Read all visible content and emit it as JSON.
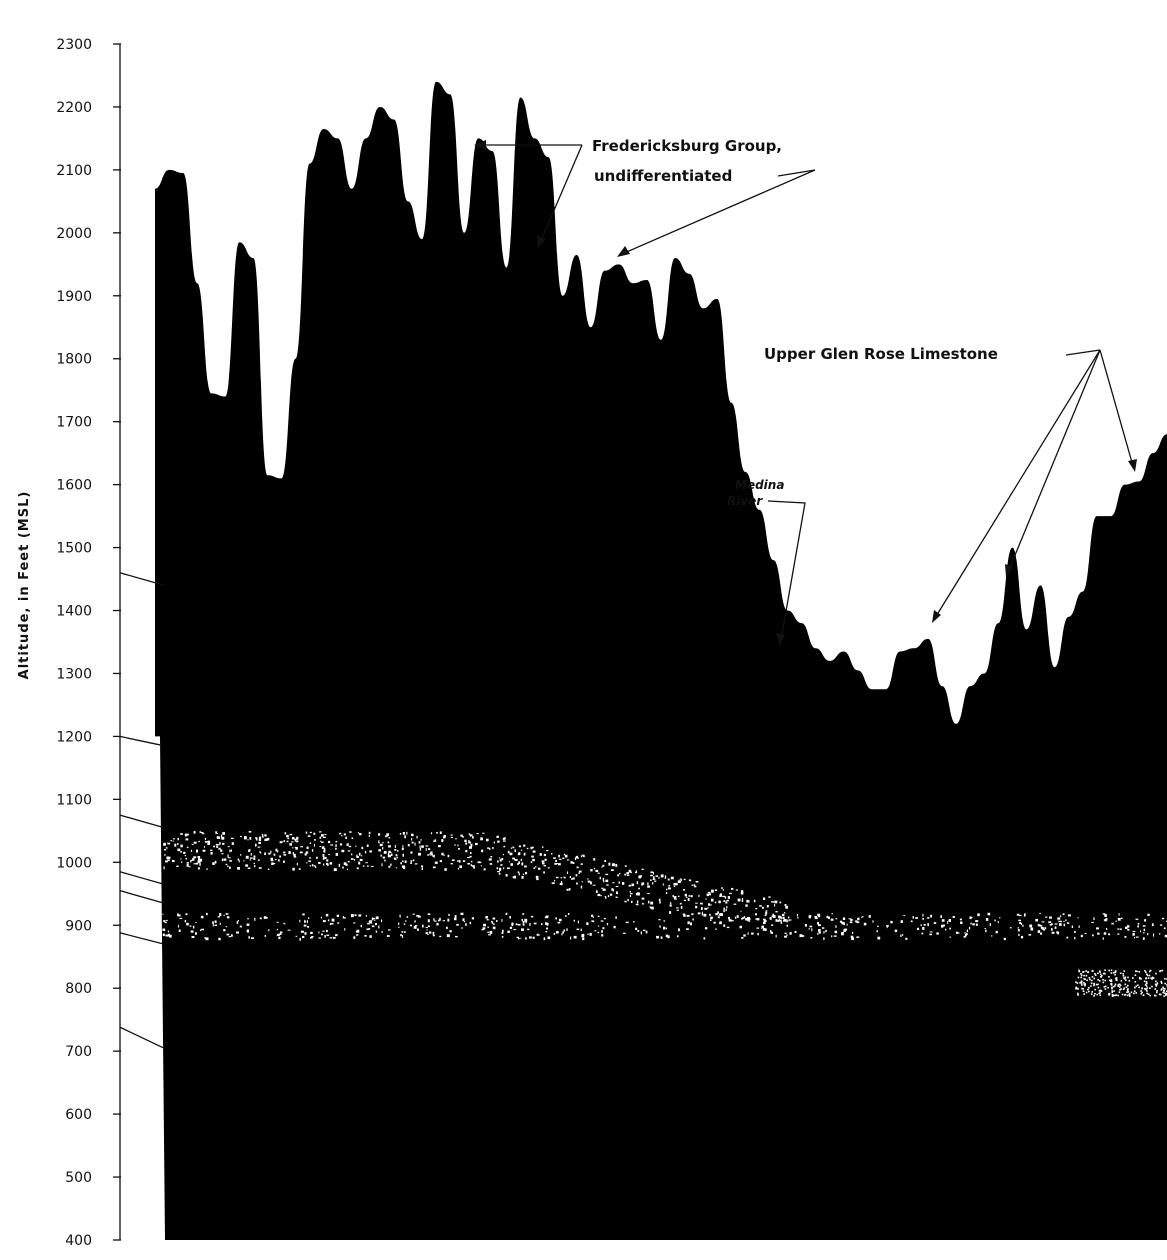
{
  "axis": {
    "title": "Altitude, in Feet (MSL)",
    "unit": "Feet (MSL)",
    "min": 400,
    "max": 2300,
    "tick_labels": [
      "2300",
      "2200",
      "2100",
      "2000",
      "1900",
      "1800",
      "1700",
      "1600",
      "1500",
      "1400",
      "1300",
      "1200",
      "1100",
      "1000",
      "900",
      "800",
      "700",
      "600",
      "500",
      "400"
    ]
  },
  "annotations": {
    "fredericksburg_line1": "Fredericksburg Group,",
    "fredericksburg_line2": "undifferentiated",
    "glen_rose": "Upper Glen Rose Limestone",
    "medina_line1": "Medina",
    "medina_line2": "River"
  },
  "profile": {
    "surface_altitudes_ft": [
      2070,
      2100,
      2095,
      1920,
      1745,
      1740,
      1985,
      1960,
      1615,
      1610,
      1800,
      2110,
      2165,
      2150,
      2070,
      2150,
      2200,
      2180,
      2050,
      1990,
      2240,
      2220,
      2000,
      2150,
      2130,
      1945,
      2215,
      2150,
      2120,
      1900,
      1965,
      1850,
      1940,
      1950,
      1920,
      1925,
      1830,
      1960,
      1935,
      1880,
      1895,
      1730,
      1620,
      1560,
      1480,
      1400,
      1380,
      1340,
      1320,
      1335,
      1305,
      1275,
      1275,
      1335,
      1340,
      1355,
      1280,
      1220,
      1280,
      1300,
      1380,
      1500,
      1370,
      1440,
      1310,
      1390,
      1430,
      1550,
      1550,
      1600,
      1605,
      1650,
      1680
    ],
    "bands_altitude_ft": [
      {
        "top": 1050,
        "bottom": 990
      },
      {
        "top": 920,
        "bottom": 880
      }
    ]
  },
  "colors": {
    "mass": "#000000",
    "background": "#ffffff",
    "speckle": "#ffffff"
  }
}
